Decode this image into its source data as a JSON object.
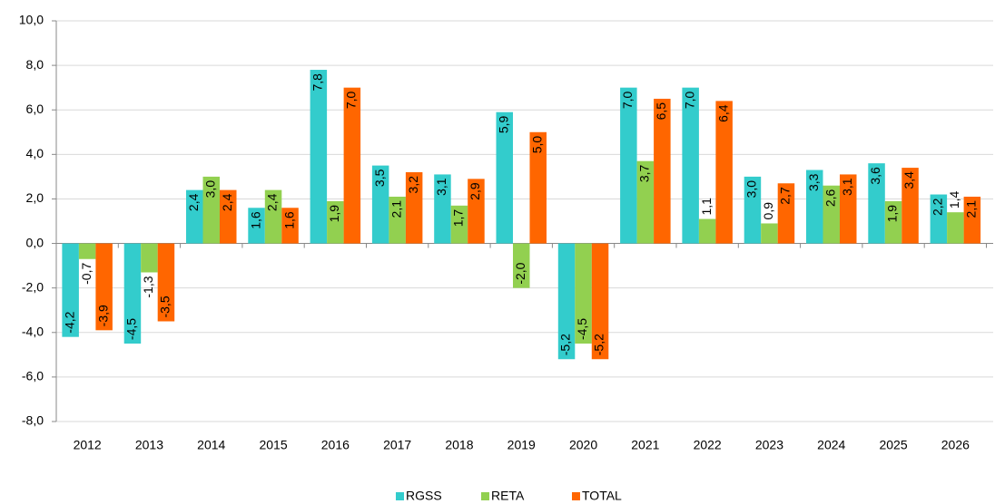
{
  "chart_data": {
    "type": "bar",
    "categories": [
      "2012",
      "2013",
      "2014",
      "2015",
      "2016",
      "2017",
      "2018",
      "2019",
      "2020",
      "2021",
      "2022",
      "2023",
      "2024",
      "2025",
      "2026"
    ],
    "series": [
      {
        "name": "RGSS",
        "color": "#33cccc",
        "values": [
          -4.2,
          -4.5,
          2.4,
          1.6,
          7.8,
          3.5,
          3.1,
          5.9,
          -5.2,
          7.0,
          7.0,
          3.0,
          3.3,
          3.6,
          2.2
        ],
        "value_labels": [
          "-4,2",
          "-4,5",
          "2,4",
          "1,6",
          "7,8",
          "3,5",
          "3,1",
          "5,9",
          "-5,2",
          "7,0",
          "7,0",
          "3,0",
          "3,3",
          "3,6",
          "2,2"
        ]
      },
      {
        "name": "RETA",
        "color": "#92d050",
        "values": [
          -0.7,
          -1.3,
          3.0,
          2.4,
          1.9,
          2.1,
          1.7,
          -2.0,
          -4.5,
          3.7,
          1.1,
          0.9,
          2.6,
          1.9,
          1.4
        ],
        "value_labels": [
          "-0,7",
          "-1,3",
          "3,0",
          "2,4",
          "1,9",
          "2,1",
          "1,7",
          "-2,0",
          "-4,5",
          "3,7",
          "1,1",
          "0,9",
          "2,6",
          "1,9",
          "1,4"
        ]
      },
      {
        "name": "TOTAL",
        "color": "#ff6600",
        "values": [
          -3.9,
          -3.5,
          2.4,
          1.6,
          7.0,
          3.2,
          2.9,
          5.0,
          -5.2,
          6.5,
          6.4,
          2.7,
          3.1,
          3.4,
          2.1
        ],
        "value_labels": [
          "-3,9",
          "-3,5",
          "2,4",
          "1,6",
          "7,0",
          "3,2",
          "2,9",
          "5,0",
          "-5,2",
          "6,5",
          "6,4",
          "2,7",
          "3,1",
          "3,4",
          "2,1"
        ]
      }
    ],
    "ylim": [
      -8,
      10
    ],
    "yticks": [
      {
        "value": -8,
        "label": "-8,0"
      },
      {
        "value": -6,
        "label": "-6,0"
      },
      {
        "value": -4,
        "label": "-4,0"
      },
      {
        "value": -2,
        "label": "-2,0"
      },
      {
        "value": 0,
        "label": "0,0"
      },
      {
        "value": 2,
        "label": "2,0"
      },
      {
        "value": 4,
        "label": "4,0"
      },
      {
        "value": 6,
        "label": "6,0"
      },
      {
        "value": 8,
        "label": "8,0"
      },
      {
        "value": 10,
        "label": "10,0"
      }
    ],
    "grid": true,
    "legend": "bottom"
  }
}
